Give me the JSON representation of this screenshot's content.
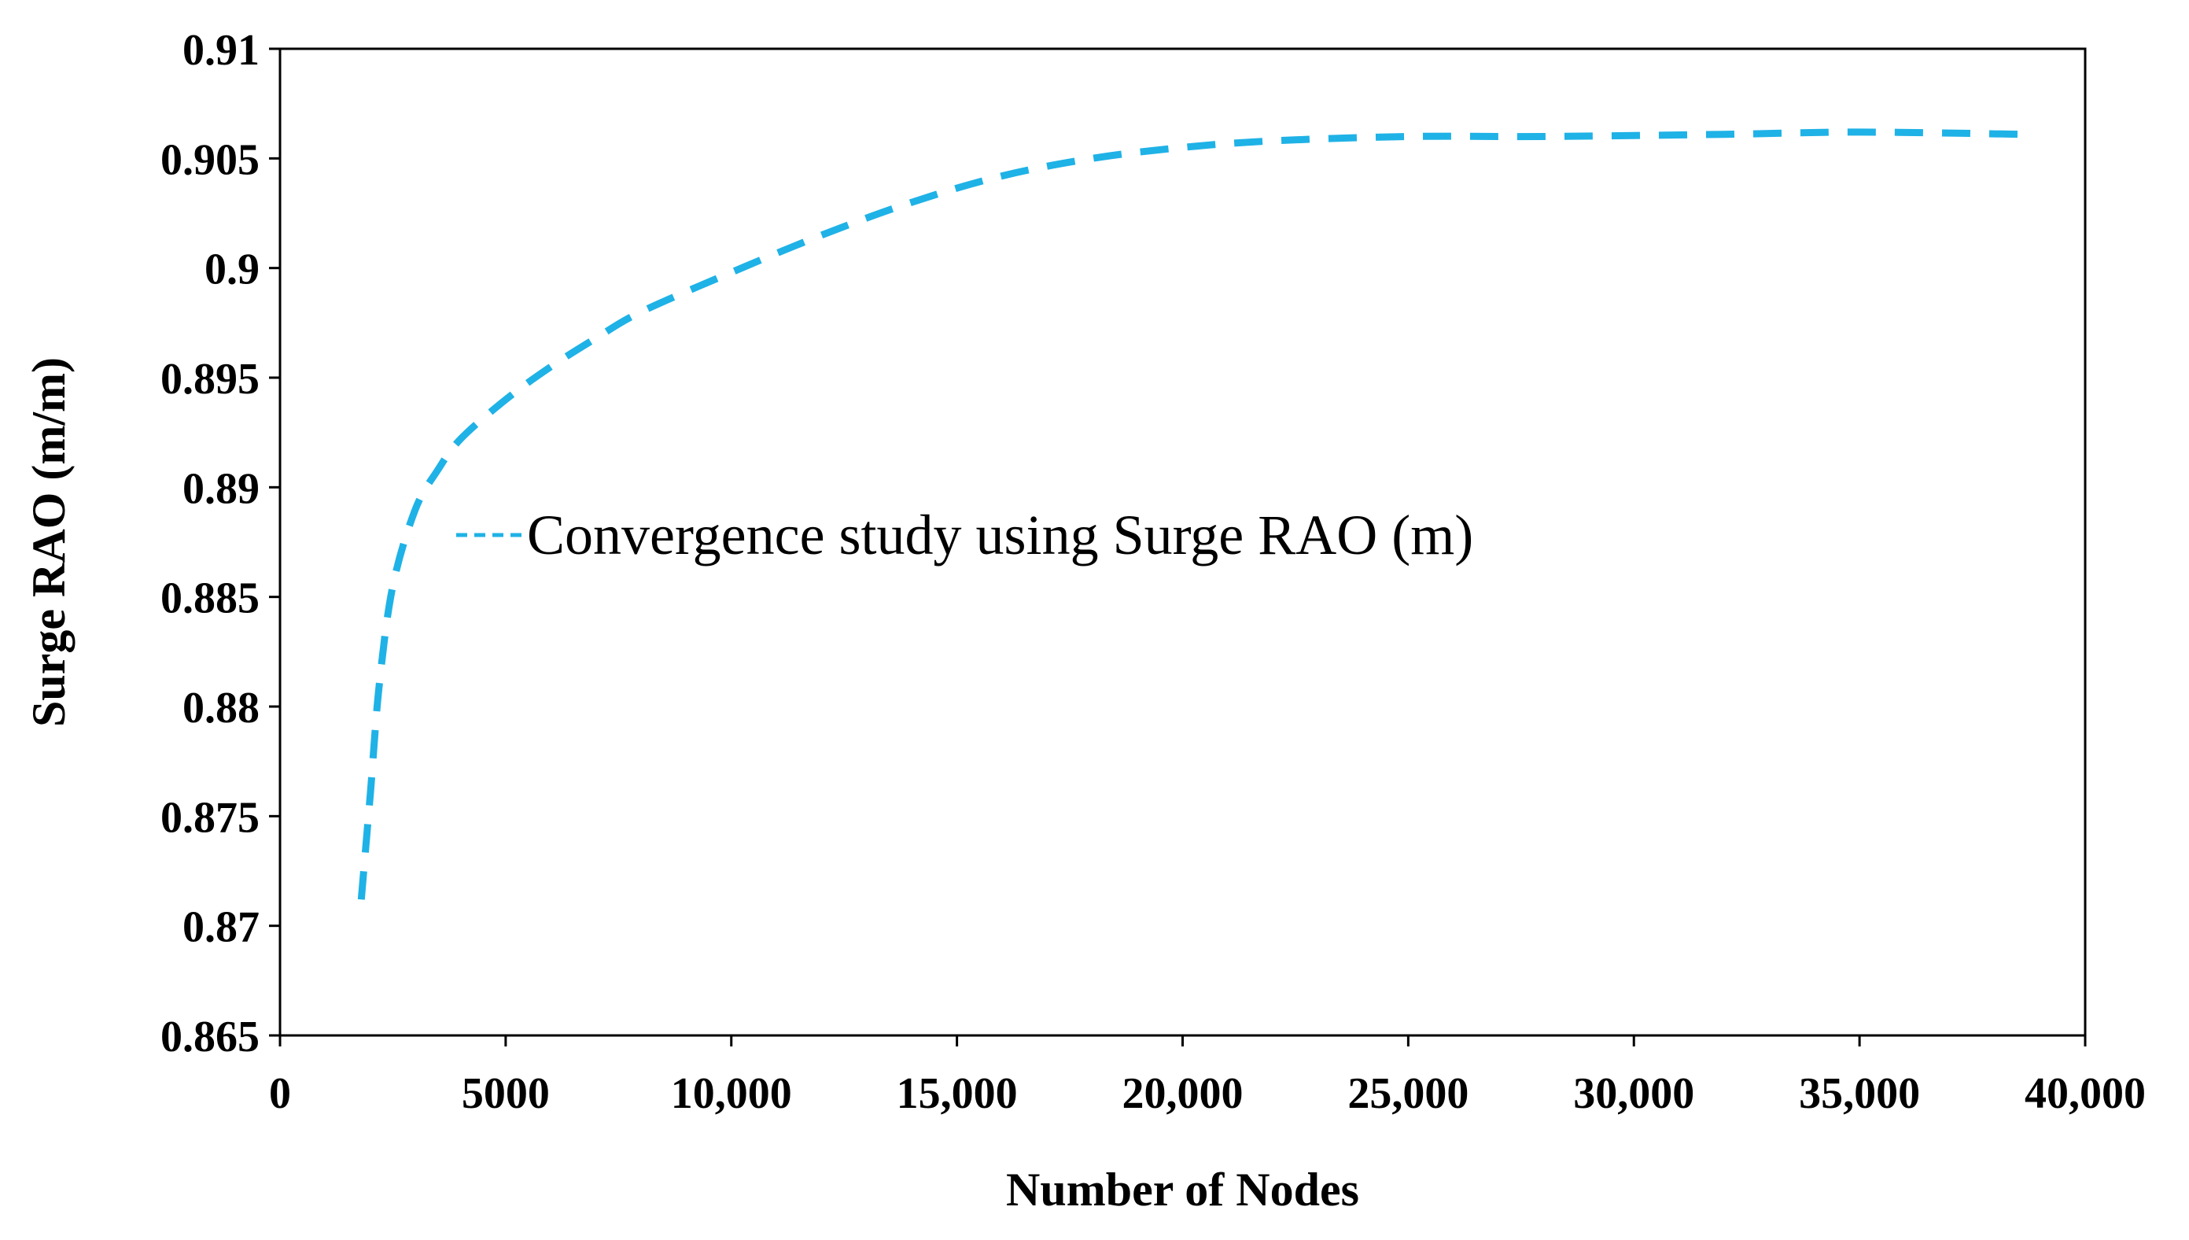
{
  "chart_data": {
    "type": "line",
    "title": "",
    "xlabel": "Number of Nodes",
    "ylabel": "Surge RAO (m/m)",
    "xlim": [
      0,
      40000
    ],
    "ylim": [
      0.865,
      0.91
    ],
    "grid": false,
    "legend_position": "center-left",
    "x_ticks": [
      0,
      5000,
      10000,
      15000,
      20000,
      25000,
      30000,
      35000,
      40000
    ],
    "x_tick_labels": [
      "0",
      "5000",
      "10,000",
      "15,000",
      "20,000",
      "25,000",
      "30,000",
      "35,000",
      "40,000"
    ],
    "y_ticks": [
      0.865,
      0.87,
      0.875,
      0.88,
      0.885,
      0.89,
      0.895,
      0.9,
      0.905,
      0.91
    ],
    "y_tick_labels": [
      "0.865",
      "0.87",
      "0.875",
      "0.88",
      "0.885",
      "0.89",
      "0.895",
      "0.9",
      "0.905",
      "0.91"
    ],
    "series": [
      {
        "name": "Convergence study using Surge RAO (m)",
        "color": "#1FB2E6",
        "style": "dashed",
        "x": [
          1800,
          2000,
          2200,
          2500,
          3000,
          3500,
          4000,
          5000,
          6000,
          7000,
          8000,
          10000,
          12000,
          14000,
          16000,
          18000,
          20000,
          22000,
          25000,
          28000,
          32000,
          35000,
          38600
        ],
        "y": [
          0.8712,
          0.876,
          0.881,
          0.8855,
          0.889,
          0.8908,
          0.8922,
          0.894,
          0.8955,
          0.8968,
          0.898,
          0.8998,
          0.9015,
          0.903,
          0.9042,
          0.905,
          0.9055,
          0.9058,
          0.906,
          0.906,
          0.9061,
          0.9062,
          0.9061
        ]
      }
    ]
  }
}
